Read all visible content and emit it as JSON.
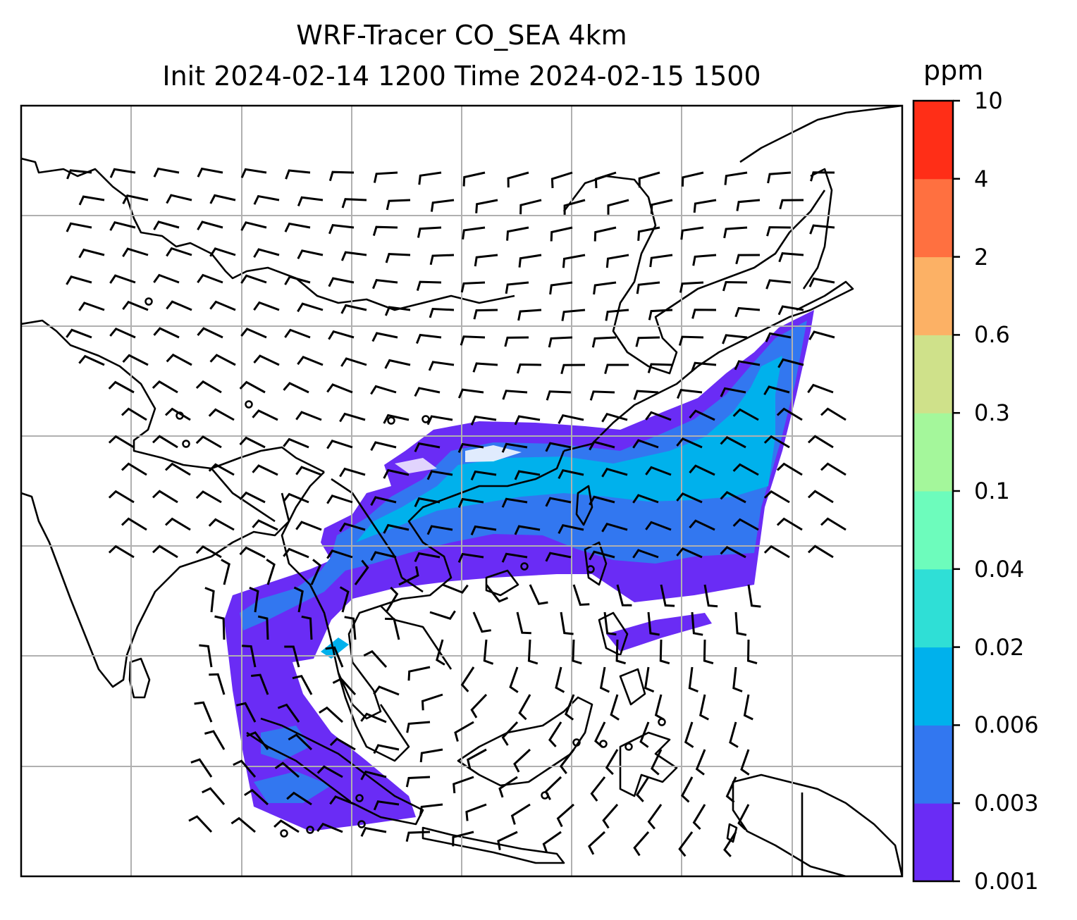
{
  "title": {
    "line1": "WRF-Tracer CO_SEA 4km",
    "line2": "Init 2024-02-14 1200 Time 2024-02-15 1500"
  },
  "colorbar": {
    "unit": "ppm",
    "ticks": [
      "0.001",
      "0.003",
      "0.006",
      "0.02",
      "0.04",
      "0.1",
      "0.3",
      "0.6",
      "2",
      "4",
      "10"
    ],
    "colors": [
      "#6a2cf5",
      "#3277f0",
      "#00b1ec",
      "#2fdfd6",
      "#6dfcbc",
      "#a4f79b",
      "#cfe18a",
      "#fcb165",
      "#ff7040",
      "#ff2e17"
    ]
  },
  "map": {
    "variable": "CO tracer concentration",
    "overlays": [
      "coastlines",
      "country-borders",
      "wind-barbs",
      "lat-lon-gridlines"
    ]
  }
}
